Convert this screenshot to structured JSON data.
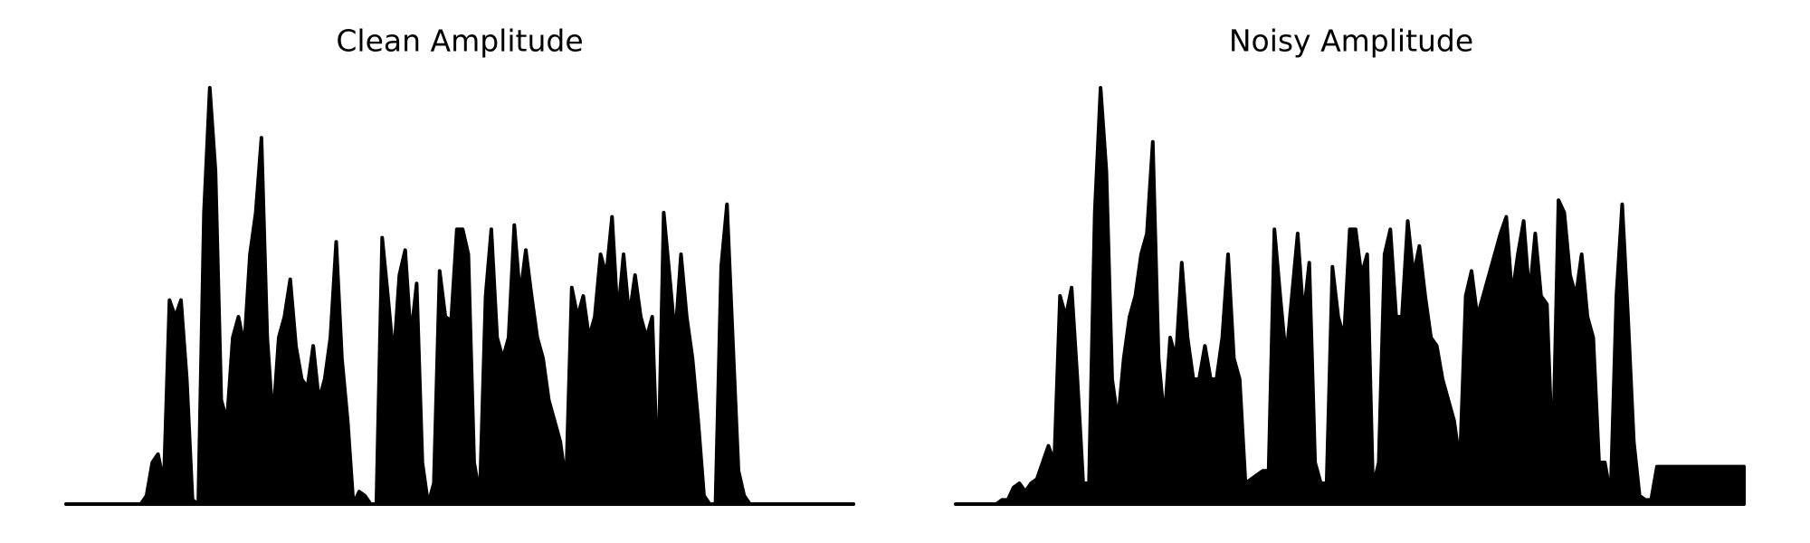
{
  "chart_data": [
    {
      "type": "area",
      "title": "Clean Amplitude",
      "color": "#000000",
      "ylim": [
        0,
        1
      ],
      "values": [
        0,
        0,
        0,
        0,
        0,
        0,
        0,
        0,
        0,
        0,
        0,
        0,
        0,
        0,
        0.02,
        0.1,
        0.12,
        0.05,
        0.49,
        0.45,
        0.49,
        0.3,
        0.01,
        0,
        0.7,
        1,
        0.8,
        0.25,
        0.2,
        0.4,
        0.45,
        0.38,
        0.6,
        0.7,
        0.88,
        0.4,
        0.2,
        0.4,
        0.45,
        0.54,
        0.38,
        0.3,
        0.28,
        0.38,
        0.25,
        0.3,
        0.4,
        0.63,
        0.35,
        0.2,
        0,
        0.03,
        0.02,
        0,
        0,
        0.64,
        0.5,
        0.35,
        0.55,
        0.61,
        0.4,
        0.53,
        0.1,
        0,
        0.05,
        0.56,
        0.45,
        0.44,
        0.66,
        0.66,
        0.6,
        0.1,
        0.02,
        0.5,
        0.66,
        0.4,
        0.35,
        0.4,
        0.67,
        0.5,
        0.61,
        0.5,
        0.4,
        0.35,
        0.25,
        0.2,
        0.15,
        0.05,
        0.52,
        0.45,
        0.5,
        0.4,
        0.45,
        0.6,
        0.55,
        0.69,
        0.45,
        0.6,
        0.45,
        0.55,
        0.45,
        0.4,
        0.45,
        0.05,
        0.7,
        0.55,
        0.4,
        0.6,
        0.45,
        0.35,
        0.2,
        0.02,
        0,
        0,
        0.57,
        0.72,
        0.4,
        0.08,
        0.02,
        0,
        0,
        0,
        0,
        0,
        0,
        0,
        0,
        0,
        0,
        0,
        0,
        0,
        0,
        0,
        0,
        0,
        0,
        0
      ]
    },
    {
      "type": "area",
      "title": "Noisy Amplitude",
      "color": "#000000",
      "ylim": [
        0,
        1
      ],
      "values": [
        0,
        0,
        0,
        0,
        0,
        0,
        0,
        0,
        0.01,
        0.01,
        0.04,
        0.05,
        0.03,
        0.05,
        0.06,
        0.1,
        0.14,
        0.1,
        0.5,
        0.45,
        0.52,
        0.3,
        0.05,
        0.05,
        0.7,
        1,
        0.8,
        0.3,
        0.2,
        0.35,
        0.45,
        0.5,
        0.6,
        0.65,
        0.87,
        0.35,
        0.2,
        0.4,
        0.35,
        0.58,
        0.4,
        0.3,
        0.3,
        0.38,
        0.3,
        0.3,
        0.4,
        0.6,
        0.35,
        0.3,
        0.05,
        0.06,
        0.07,
        0.08,
        0.08,
        0.66,
        0.5,
        0.35,
        0.5,
        0.65,
        0.45,
        0.58,
        0.1,
        0.05,
        0.05,
        0.57,
        0.45,
        0.4,
        0.66,
        0.66,
        0.55,
        0.6,
        0.04,
        0.1,
        0.6,
        0.66,
        0.45,
        0.45,
        0.68,
        0.55,
        0.62,
        0.5,
        0.4,
        0.38,
        0.3,
        0.25,
        0.2,
        0.1,
        0.5,
        0.56,
        0.45,
        0.5,
        0.55,
        0.6,
        0.65,
        0.69,
        0.5,
        0.6,
        0.68,
        0.5,
        0.65,
        0.5,
        0.48,
        0.1,
        0.73,
        0.7,
        0.55,
        0.5,
        0.6,
        0.45,
        0.4,
        0.1,
        0.1,
        0.02,
        0.5,
        0.72,
        0.45,
        0.15,
        0.02,
        0.01,
        0.01,
        0.09,
        0.09,
        0.09,
        0.09,
        0.09,
        0.09,
        0.09,
        0.09,
        0.09,
        0.09,
        0.09,
        0.09,
        0.09,
        0.09,
        0.09,
        0.09
      ]
    }
  ]
}
